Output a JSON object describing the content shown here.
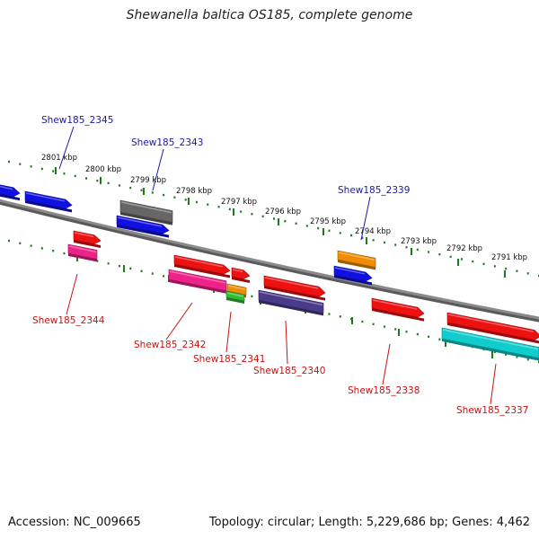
{
  "title": "Shewanella baltica OS185, complete genome",
  "footer": {
    "accession": "Accession: NC_009665",
    "summary": "Topology: circular; Length: 5,229,686 bp; Genes: 4,462"
  },
  "colors": {
    "backbone": "#8a8a8a",
    "tick": "#1f7a1f",
    "label_forward": "#1a1aa6",
    "label_reverse": "#cc1111"
  },
  "ruler": [
    {
      "label": "2801 kbp",
      "pos": 2801
    },
    {
      "label": "2800 kbp",
      "pos": 2800
    },
    {
      "label": "2799 kbp",
      "pos": 2799
    },
    {
      "label": "2798 kbp",
      "pos": 2798
    },
    {
      "label": "2797 kbp",
      "pos": 2797
    },
    {
      "label": "2796 kbp",
      "pos": 2796
    },
    {
      "label": "2795 kbp",
      "pos": 2795
    },
    {
      "label": "2794 kbp",
      "pos": 2794
    },
    {
      "label": "2793 kbp",
      "pos": 2793
    },
    {
      "label": "2792 kbp",
      "pos": 2792
    },
    {
      "label": "2791 kbp",
      "pos": 2791
    }
  ],
  "genes": [
    {
      "name": "",
      "strand": "forward",
      "color": "#1010e0"
    },
    {
      "name": "Shew185_2345",
      "strand": "forward",
      "color": "#1010e0"
    },
    {
      "name": "",
      "strand": "forward",
      "color": "#666666"
    },
    {
      "name": "Shew185_2343",
      "strand": "forward",
      "color": "#1010e0"
    },
    {
      "name": "Shew185_2339",
      "strand": "forward",
      "color": "#f08c00"
    },
    {
      "name": "",
      "strand": "forward",
      "color": "#1010e0"
    },
    {
      "name": "",
      "strand": "reverse",
      "color": "#ee1111"
    },
    {
      "name": "Shew185_2344",
      "strand": "reverse",
      "color": "#ee2288"
    },
    {
      "name": "",
      "strand": "reverse",
      "color": "#ee1111"
    },
    {
      "name": "Shew185_2342",
      "strand": "reverse",
      "color": "#ee2288"
    },
    {
      "name": "",
      "strand": "reverse",
      "color": "#ee1111"
    },
    {
      "name": "Shew185_2341",
      "strand": "reverse",
      "color": "#f08c00"
    },
    {
      "name": "",
      "strand": "reverse",
      "color": "#33bb33"
    },
    {
      "name": "",
      "strand": "reverse",
      "color": "#ee1111"
    },
    {
      "name": "Shew185_2340",
      "strand": "reverse",
      "color": "#4a3a8a"
    },
    {
      "name": "Shew185_2338",
      "strand": "reverse",
      "color": "#ee1111"
    },
    {
      "name": "",
      "strand": "reverse",
      "color": "#ee1111"
    },
    {
      "name": "Shew185_2337",
      "strand": "reverse",
      "color": "#11cccc"
    }
  ]
}
